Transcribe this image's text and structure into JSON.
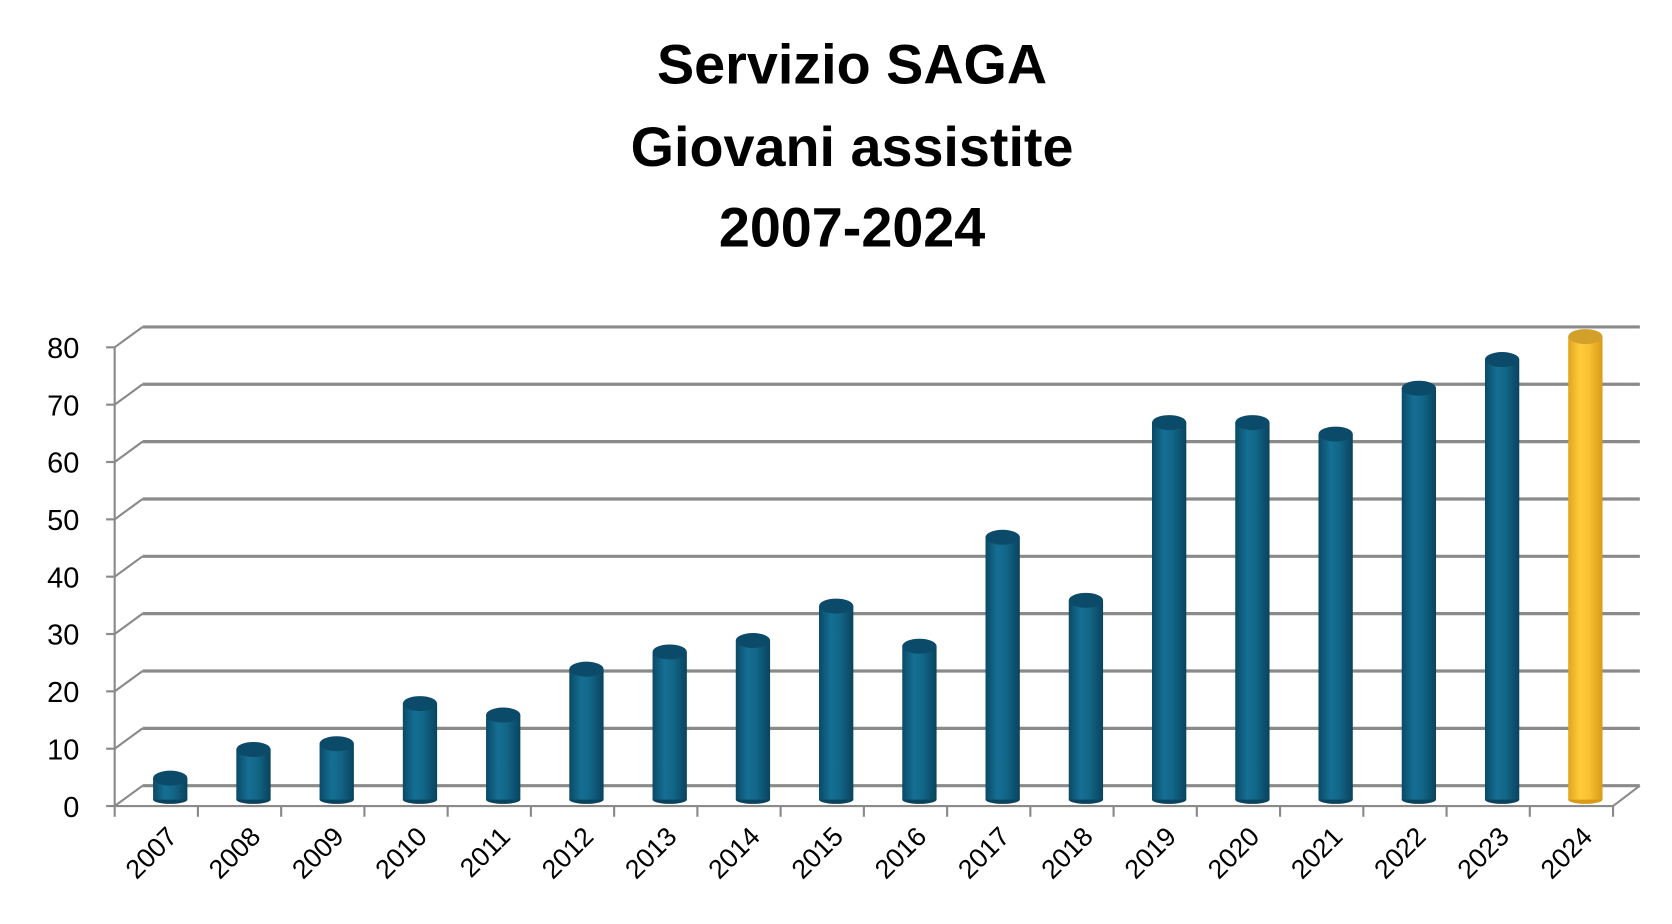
{
  "chart_data": {
    "type": "bar",
    "title_lines": [
      "Servizio SAGA",
      "Giovani assistite",
      "2007-2024"
    ],
    "xlabel": "",
    "ylabel": "",
    "categories": [
      "2007",
      "2008",
      "2009",
      "2010",
      "2011",
      "2012",
      "2013",
      "2014",
      "2015",
      "2016",
      "2017",
      "2018",
      "2019",
      "2020",
      "2021",
      "2022",
      "2023",
      "2024"
    ],
    "values": [
      3,
      8,
      9,
      16,
      14,
      22,
      25,
      27,
      33,
      26,
      45,
      34,
      65,
      65,
      63,
      71,
      76,
      80
    ],
    "ylim": [
      0,
      80
    ],
    "yticks": [
      "0",
      "10",
      "20",
      "30",
      "40",
      "50",
      "60",
      "70",
      "80"
    ],
    "grid": true,
    "style": "3d-cylinder",
    "colors": {
      "default": "#0f5f80",
      "highlight": "#f7c232",
      "highlight_category": "2024"
    }
  }
}
